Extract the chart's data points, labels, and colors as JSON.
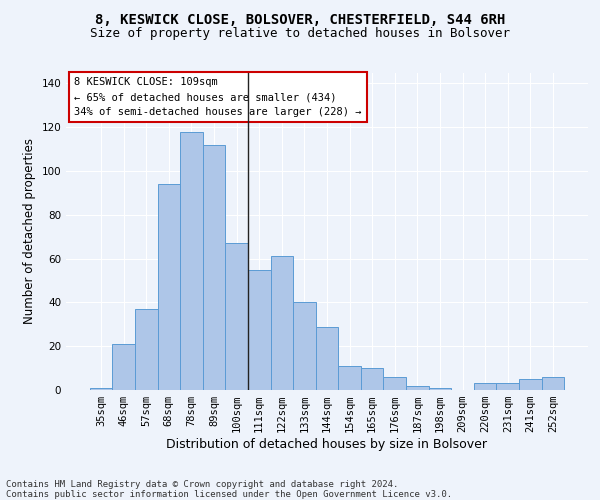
{
  "title1": "8, KESWICK CLOSE, BOLSOVER, CHESTERFIELD, S44 6RH",
  "title2": "Size of property relative to detached houses in Bolsover",
  "xlabel": "Distribution of detached houses by size in Bolsover",
  "ylabel": "Number of detached properties",
  "bar_labels": [
    "35sqm",
    "46sqm",
    "57sqm",
    "68sqm",
    "78sqm",
    "89sqm",
    "100sqm",
    "111sqm",
    "122sqm",
    "133sqm",
    "144sqm",
    "154sqm",
    "165sqm",
    "176sqm",
    "187sqm",
    "198sqm",
    "209sqm",
    "220sqm",
    "231sqm",
    "241sqm",
    "252sqm"
  ],
  "bar_values": [
    1,
    21,
    37,
    94,
    118,
    112,
    67,
    55,
    61,
    40,
    29,
    11,
    10,
    6,
    2,
    1,
    0,
    3,
    3,
    5,
    6
  ],
  "bar_color": "#aec6e8",
  "bar_edge_color": "#5b9bd5",
  "background_color": "#eef3fb",
  "grid_color": "#ffffff",
  "annotation_text": "8 KESWICK CLOSE: 109sqm\n← 65% of detached houses are smaller (434)\n34% of semi-detached houses are larger (228) →",
  "annotation_box_color": "#ffffff",
  "annotation_border_color": "#cc0000",
  "vline_position": 6.5,
  "vline_color": "#222222",
  "footer": "Contains HM Land Registry data © Crown copyright and database right 2024.\nContains public sector information licensed under the Open Government Licence v3.0.",
  "ylim": [
    0,
    145
  ],
  "title1_fontsize": 10,
  "title2_fontsize": 9,
  "xlabel_fontsize": 9,
  "ylabel_fontsize": 8.5,
  "tick_fontsize": 7.5,
  "annotation_fontsize": 7.5,
  "footer_fontsize": 6.5
}
